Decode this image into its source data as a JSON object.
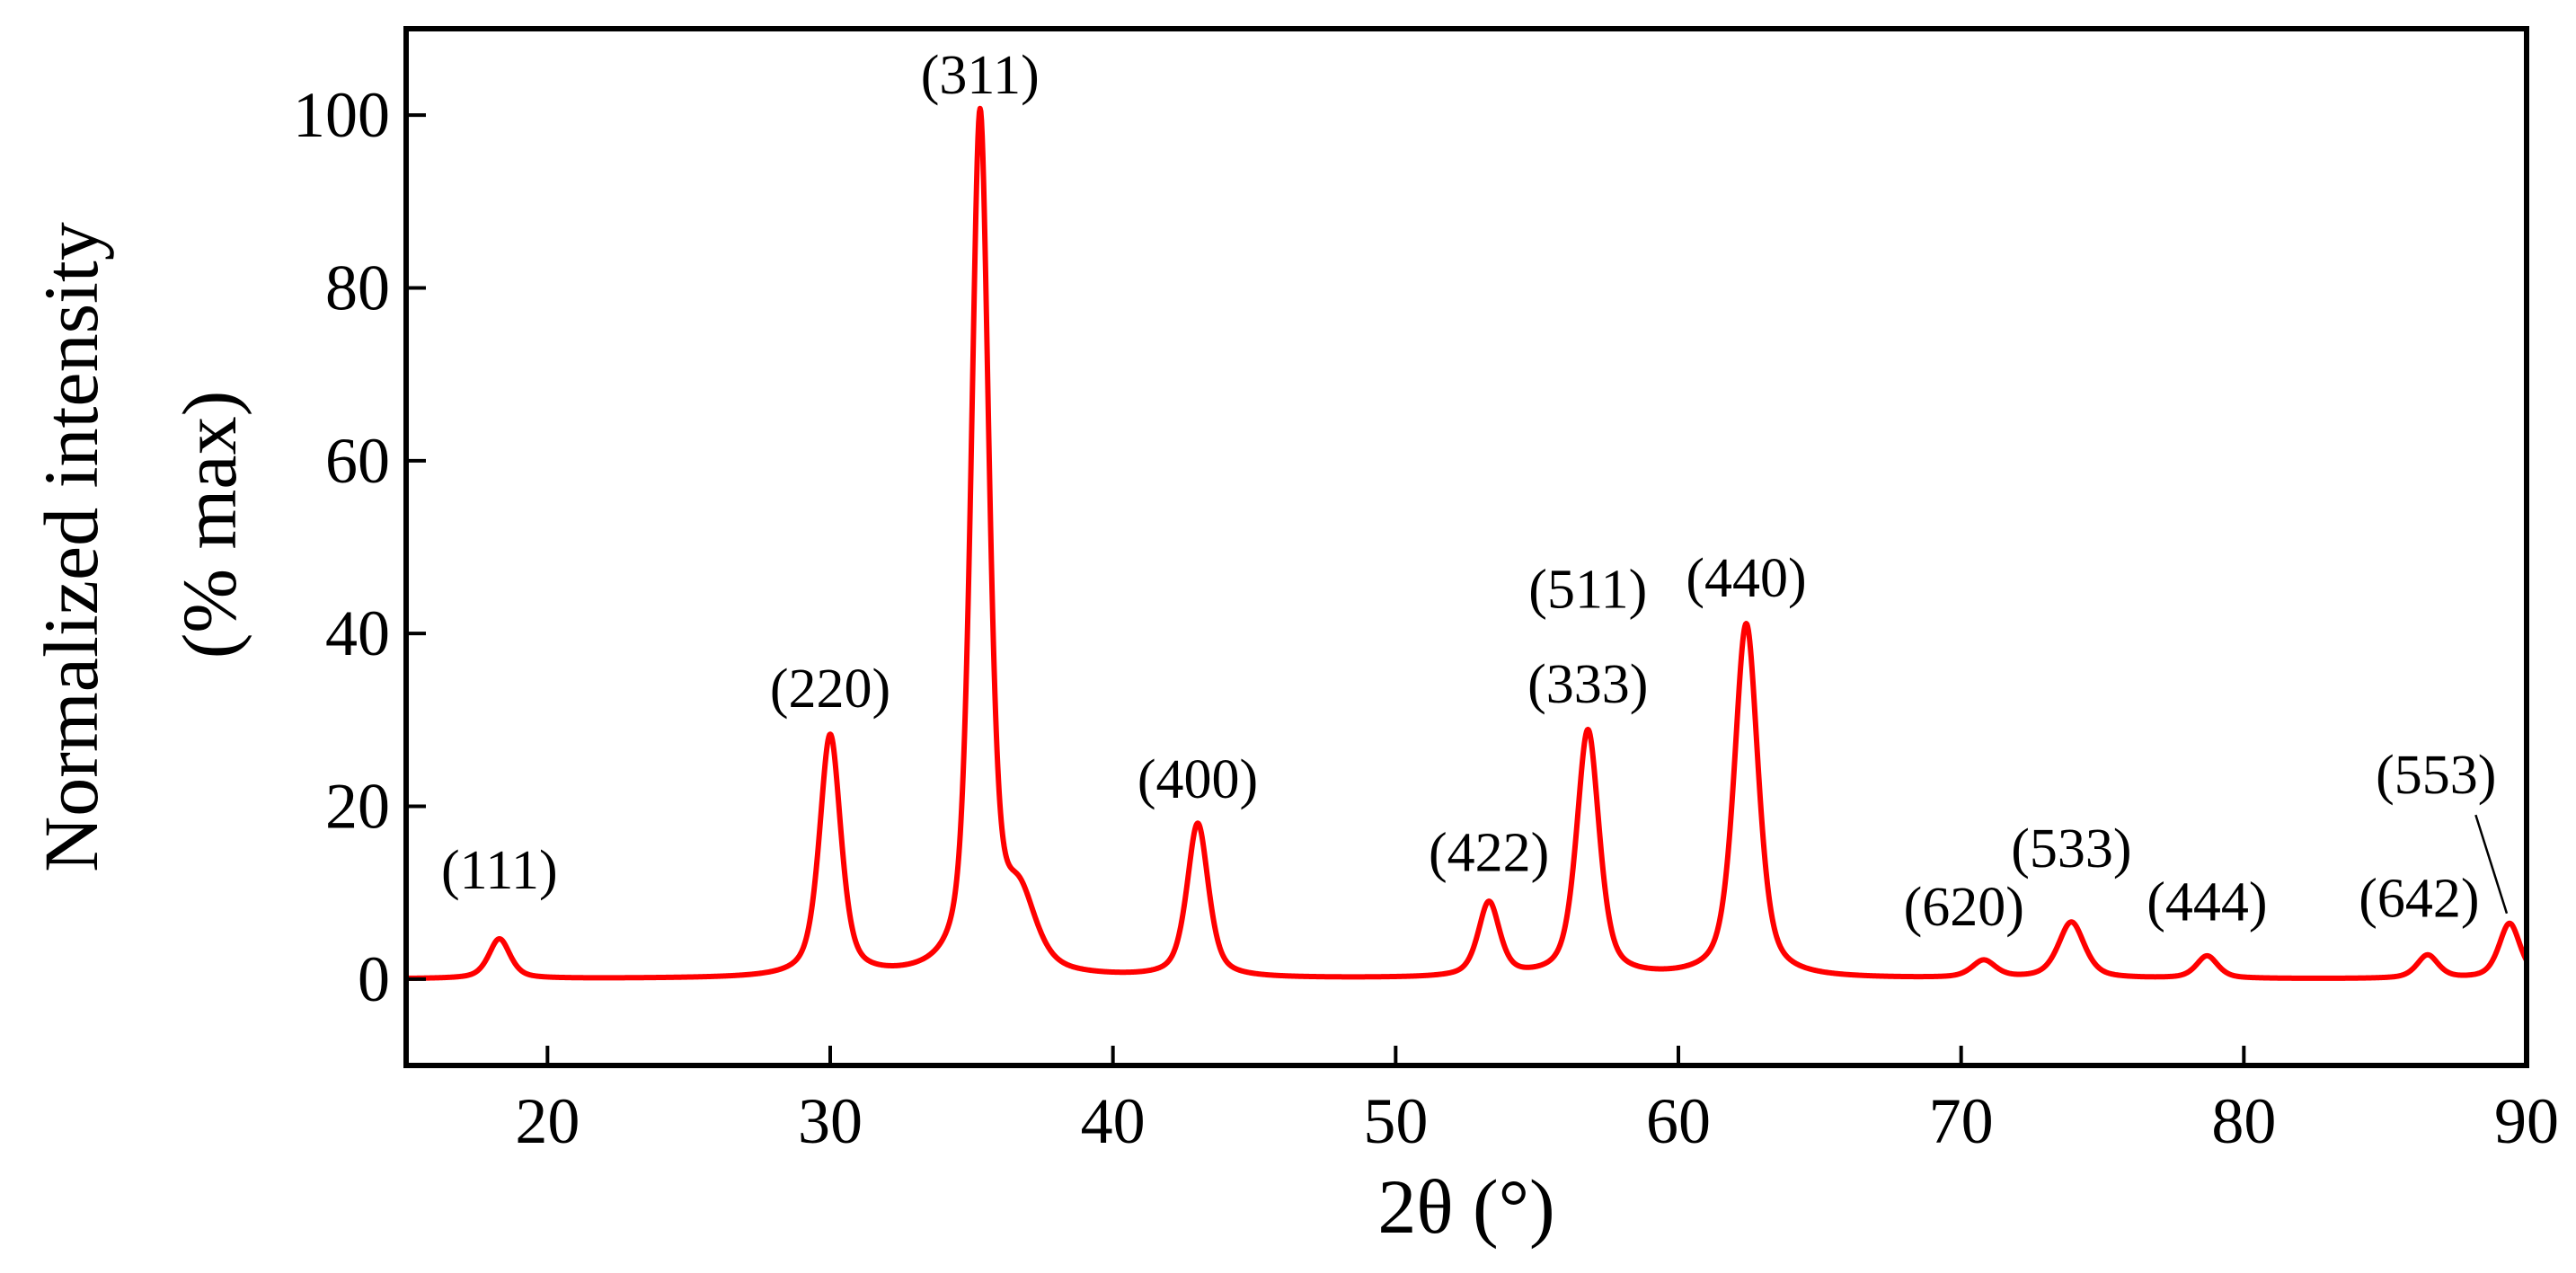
{
  "chart_data": {
    "type": "line",
    "title": "",
    "xlabel": "2θ (°)",
    "ylabel_line1": "Normalized intensity",
    "ylabel_line2": "(% max)",
    "xlim": [
      15,
      90
    ],
    "ylim": [
      -10,
      110
    ],
    "xticks": [
      20,
      30,
      40,
      50,
      60,
      70,
      80,
      90
    ],
    "yticks": [
      0,
      20,
      40,
      60,
      80,
      100
    ],
    "grid": false,
    "series": [
      {
        "color": "#ff0000",
        "baseline": 0.0,
        "peaks": [
          {
            "pos": 18.3,
            "height": 4.6,
            "width": 0.9
          },
          {
            "pos": 30.0,
            "height": 28.0,
            "width": 0.9
          },
          {
            "pos": 35.3,
            "height": 99.5,
            "width": 0.75
          },
          {
            "pos": 36.7,
            "height": 8.0,
            "width": 1.4
          },
          {
            "pos": 43.0,
            "height": 17.8,
            "width": 0.9
          },
          {
            "pos": 53.3,
            "height": 8.6,
            "width": 0.9
          },
          {
            "pos": 56.8,
            "height": 28.6,
            "width": 0.95
          },
          {
            "pos": 62.4,
            "height": 41.0,
            "width": 1.0
          },
          {
            "pos": 70.8,
            "height": 2.0,
            "width": 1.0
          },
          {
            "pos": 73.9,
            "height": 6.5,
            "width": 1.1
          },
          {
            "pos": 78.7,
            "height": 2.6,
            "width": 0.9
          },
          {
            "pos": 86.5,
            "height": 2.7,
            "width": 0.9
          },
          {
            "pos": 89.4,
            "height": 6.4,
            "width": 0.9
          }
        ]
      }
    ],
    "annotations": [
      {
        "text": "(111)",
        "x": 18.3,
        "y": 10.5
      },
      {
        "text": "(220)",
        "x": 30.0,
        "y": 31.5
      },
      {
        "text": "(311)",
        "x": 35.3,
        "y": 102.5
      },
      {
        "text": "(400)",
        "x": 43.0,
        "y": 21.0
      },
      {
        "text": "(422)",
        "x": 53.3,
        "y": 12.5
      },
      {
        "text": "(333)",
        "x": 56.8,
        "y": 32.0
      },
      {
        "text": "(511)",
        "x": 56.8,
        "y": 43.0
      },
      {
        "text": "(440)",
        "x": 62.4,
        "y": 44.3
      },
      {
        "text": "(620)",
        "x": 70.1,
        "y": 6.2
      },
      {
        "text": "(533)",
        "x": 73.9,
        "y": 13.0
      },
      {
        "text": "(444)",
        "x": 78.7,
        "y": 6.8
      },
      {
        "text": "(642)",
        "x": 86.2,
        "y": 7.2
      },
      {
        "text": "(553)",
        "x": 86.8,
        "y": 21.5
      }
    ]
  }
}
